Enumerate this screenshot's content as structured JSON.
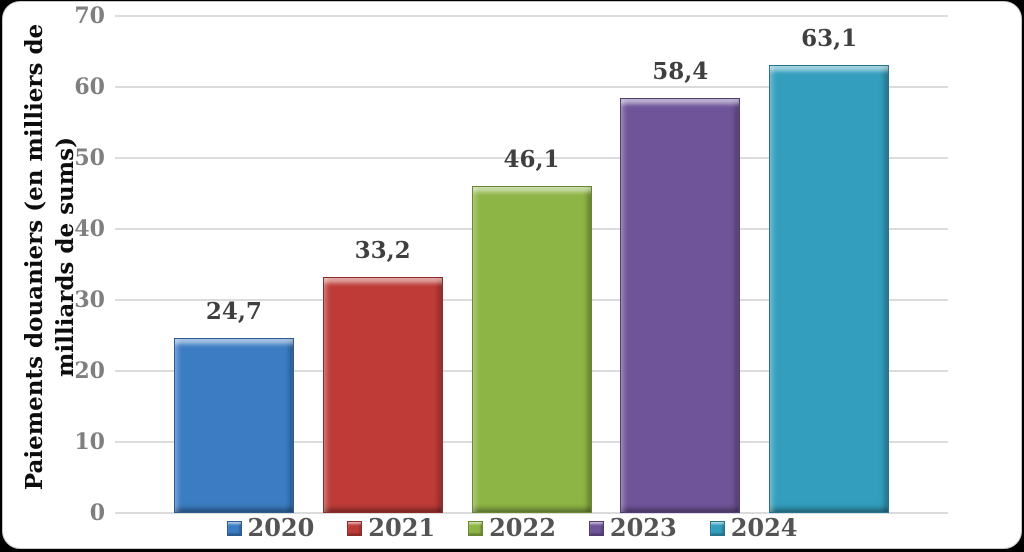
{
  "chart_data": {
    "type": "bar",
    "title": "",
    "ylabel_line1": "Paiements douaniers (en milliers de",
    "ylabel_line2": "milliards de sums)",
    "xlabel": "",
    "categories": [
      "2020",
      "2021",
      "2022",
      "2023",
      "2024"
    ],
    "values": [
      24.7,
      33.2,
      46.1,
      58.4,
      63.1
    ],
    "value_labels": [
      "24,7",
      "33,2",
      "46,1",
      "58,4",
      "63,1"
    ],
    "ylim": [
      0,
      70
    ],
    "yticks": [
      0,
      10,
      20,
      30,
      40,
      50,
      60,
      70
    ],
    "grid": true,
    "legend_position": "bottom",
    "series_colors": [
      {
        "name": "2020",
        "base": "#3b7cc3",
        "dark": "#2b5c92",
        "light": "#7eb3e8"
      },
      {
        "name": "2021",
        "base": "#be3b38",
        "dark": "#8e2b29",
        "light": "#e0706d"
      },
      {
        "name": "2022",
        "base": "#8db545",
        "dark": "#698830",
        "light": "#bcd883"
      },
      {
        "name": "2023",
        "base": "#6f5499",
        "dark": "#523d73",
        "light": "#9f83c6"
      },
      {
        "name": "2024",
        "base": "#339ebd",
        "dark": "#25758d",
        "light": "#6fcbe2"
      }
    ],
    "colors": {
      "grid": "#dcdcdc",
      "tick_text": "#7f7f7f",
      "value_text": "#3f3f3f",
      "legend_text": "#545454",
      "axis_title_text": "#0d0d0d",
      "card_background": "#ffffff",
      "page_background": "#000000"
    }
  }
}
